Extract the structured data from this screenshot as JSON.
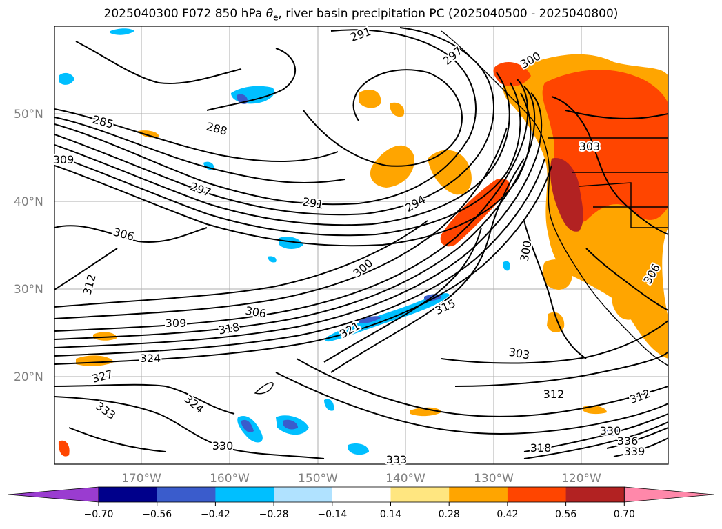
{
  "title_prefix": "2025040300 F072 850 hPa ",
  "title_theta": "θ",
  "title_theta_sub": "e",
  "title_suffix": ", river basin precipitation PC (2025040500 - 2025040800)",
  "lat_ticks": [
    "50°N",
    "40°N",
    "30°N",
    "20°N"
  ],
  "lon_ticks": [
    "170°W",
    "160°W",
    "150°W",
    "140°W",
    "130°W",
    "120°W"
  ],
  "contour_labels": [
    "285",
    "288",
    "291",
    "294",
    "297",
    "300",
    "300",
    "303",
    "303",
    "306",
    "306",
    "306",
    "309",
    "309",
    "312",
    "312",
    "312",
    "315",
    "318",
    "318",
    "321",
    "324",
    "324",
    "327",
    "330",
    "330",
    "333",
    "333",
    "336",
    "339",
    "291",
    "297",
    "300"
  ],
  "colorbar": {
    "ticks": [
      "−0.70",
      "−0.56",
      "−0.42",
      "−0.28",
      "−0.14",
      "0.14",
      "0.28",
      "0.42",
      "0.56",
      "0.70"
    ],
    "colors": [
      "#9a3cd0",
      "#00008b",
      "#3a5ccc",
      "#00bfff",
      "#b0e2ff",
      "#ffffff",
      "#ffe680",
      "#ffa500",
      "#ff4500",
      "#b22222",
      "#ff88aa"
    ]
  }
}
